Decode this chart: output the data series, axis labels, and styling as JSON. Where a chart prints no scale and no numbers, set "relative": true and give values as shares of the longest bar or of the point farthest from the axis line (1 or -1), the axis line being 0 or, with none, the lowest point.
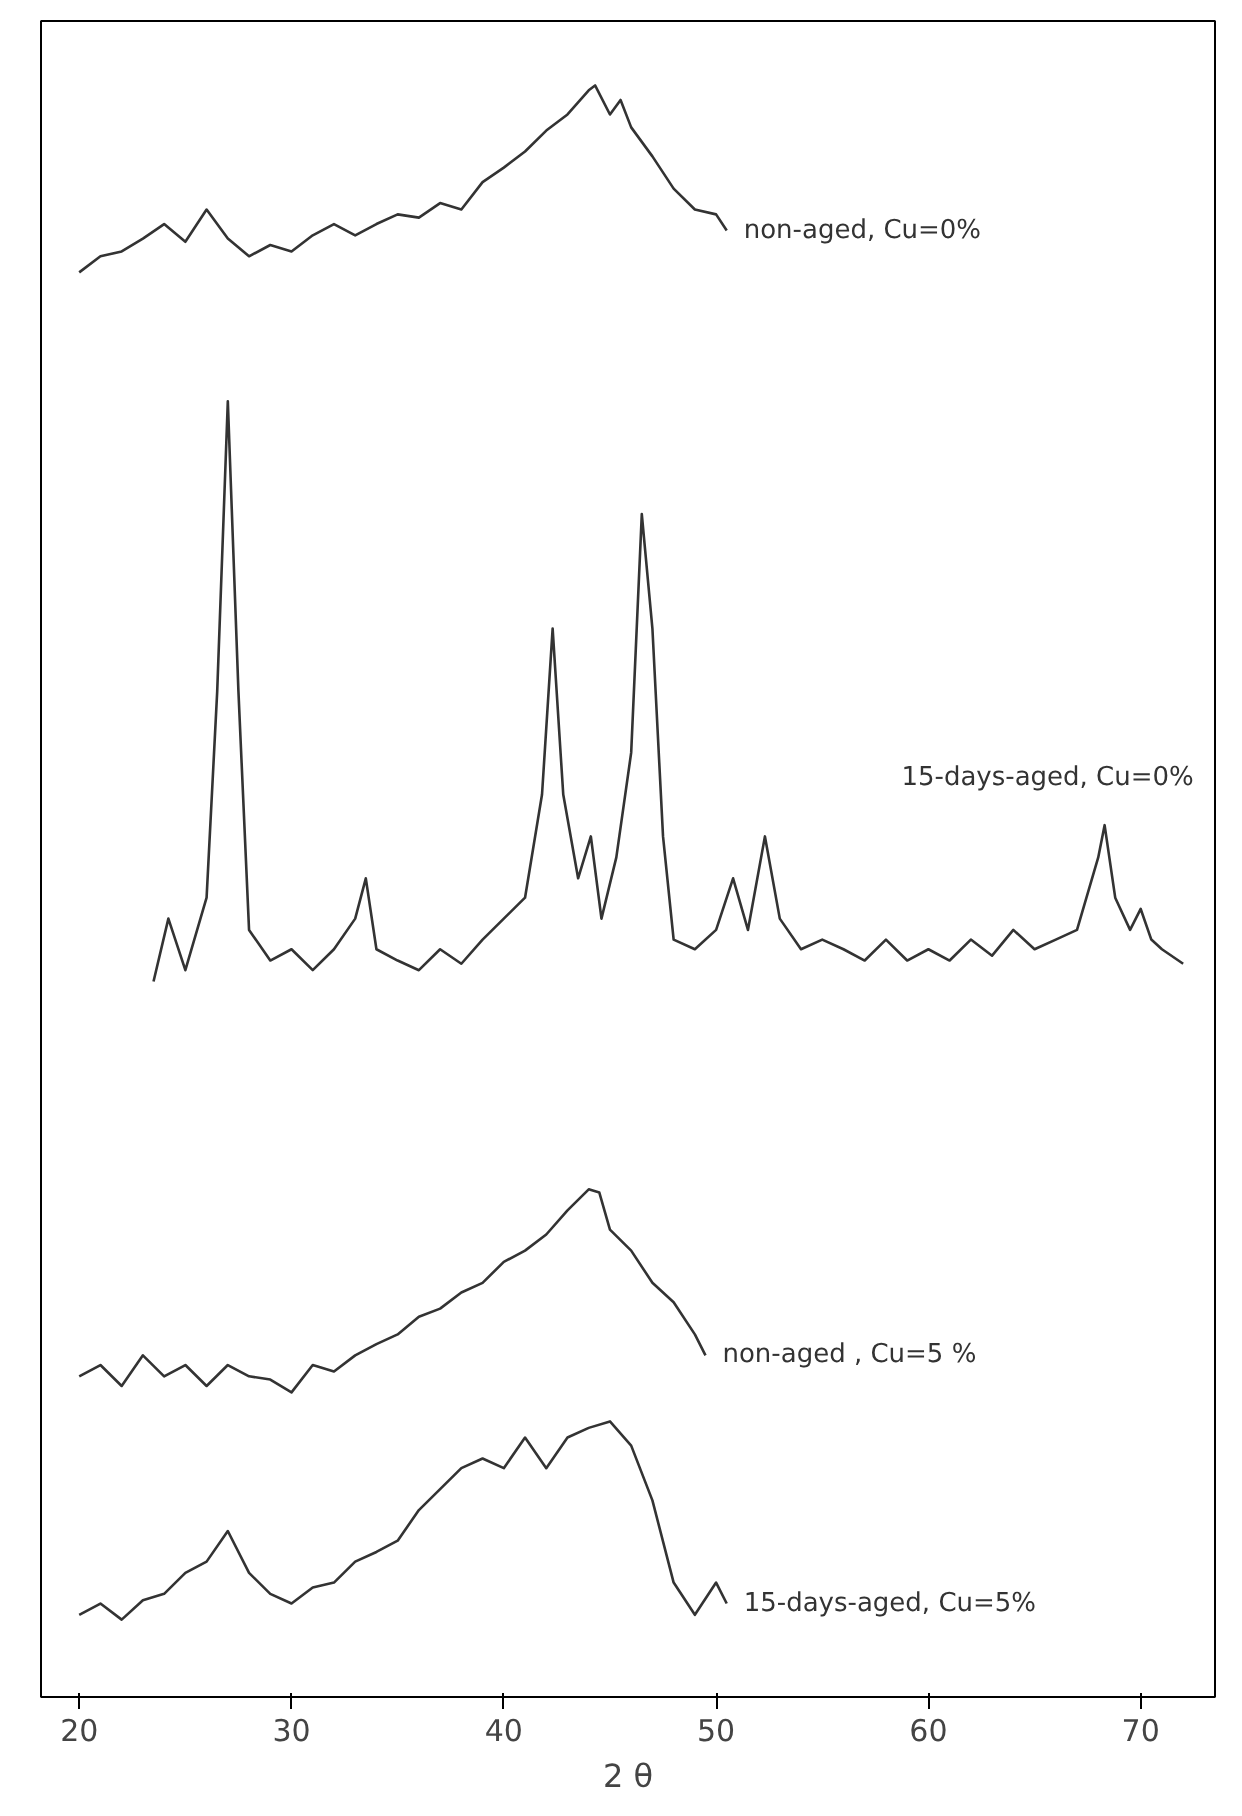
{
  "chart_data": {
    "type": "line",
    "relative": true,
    "xlabel": "2 θ",
    "xlim": [
      18.2,
      73.5
    ],
    "xticks": [
      20,
      30,
      40,
      50,
      60,
      70
    ],
    "series": [
      {
        "name": "non-aged, Cu=0%",
        "color": "#333333",
        "x": [
          20,
          21,
          22,
          23,
          24,
          25,
          26,
          27,
          28,
          29,
          30,
          31,
          32,
          33,
          34,
          35,
          36,
          37,
          38,
          39,
          40,
          41,
          42,
          43,
          44,
          44.3,
          45,
          45.5,
          46,
          47,
          48,
          49,
          50,
          50.5
        ],
        "values": [
          0.884,
          0.894,
          0.897,
          0.905,
          0.914,
          0.903,
          0.923,
          0.905,
          0.894,
          0.901,
          0.897,
          0.907,
          0.914,
          0.907,
          0.914,
          0.92,
          0.918,
          0.927,
          0.923,
          0.94,
          0.949,
          0.959,
          0.972,
          0.982,
          0.997,
          1.0,
          0.982,
          0.991,
          0.974,
          0.956,
          0.936,
          0.923,
          0.92,
          0.91
        ]
      },
      {
        "name": "15-days-aged, Cu=0%",
        "color": "#333333",
        "x": [
          23.5,
          24.2,
          25,
          26,
          26.5,
          27,
          27.5,
          28,
          29,
          30,
          31,
          32,
          33,
          33.5,
          34,
          35,
          36,
          37,
          38,
          39,
          40,
          41,
          41.8,
          42.3,
          42.8,
          43.5,
          44.1,
          44.6,
          45.3,
          46,
          46.5,
          47,
          47.5,
          48,
          49,
          50,
          50.8,
          51.5,
          52.3,
          53,
          54,
          55,
          56,
          57,
          58,
          59,
          60,
          61,
          62,
          63,
          64,
          65,
          66,
          67,
          68,
          68.3,
          68.8,
          69.5,
          70,
          70.5,
          71,
          72
        ],
        "values": [
          0.444,
          0.483,
          0.451,
          0.496,
          0.624,
          0.804,
          0.624,
          0.476,
          0.457,
          0.464,
          0.451,
          0.464,
          0.483,
          0.508,
          0.464,
          0.457,
          0.451,
          0.464,
          0.455,
          0.47,
          0.483,
          0.496,
          0.56,
          0.663,
          0.56,
          0.508,
          0.534,
          0.483,
          0.521,
          0.586,
          0.734,
          0.663,
          0.534,
          0.47,
          0.464,
          0.476,
          0.508,
          0.476,
          0.534,
          0.483,
          0.464,
          0.47,
          0.464,
          0.457,
          0.47,
          0.457,
          0.464,
          0.457,
          0.47,
          0.46,
          0.476,
          0.464,
          0.47,
          0.476,
          0.521,
          0.541,
          0.496,
          0.476,
          0.489,
          0.47,
          0.464,
          0.455
        ]
      },
      {
        "name": "non-aged , Cu=5 %",
        "color": "#333333",
        "x": [
          20,
          21,
          22,
          23,
          24,
          25,
          26,
          27,
          28,
          29,
          30,
          31,
          32,
          33,
          34,
          35,
          36,
          37,
          38,
          39,
          40,
          41,
          42,
          43,
          44,
          44.5,
          45,
          46,
          47,
          48,
          49,
          49.5
        ],
        "values": [
          0.199,
          0.206,
          0.193,
          0.212,
          0.199,
          0.206,
          0.193,
          0.206,
          0.199,
          0.197,
          0.189,
          0.206,
          0.202,
          0.212,
          0.219,
          0.225,
          0.236,
          0.241,
          0.251,
          0.257,
          0.27,
          0.277,
          0.287,
          0.302,
          0.315,
          0.313,
          0.29,
          0.277,
          0.257,
          0.245,
          0.225,
          0.212
        ]
      },
      {
        "name": "15-days-aged, Cu=5%",
        "color": "#333333",
        "x": [
          20,
          21,
          22,
          23,
          24,
          25,
          26,
          27,
          28,
          29,
          30,
          31,
          32,
          33,
          34,
          35,
          36,
          37,
          38,
          39,
          40,
          41,
          42,
          43,
          44,
          45,
          46,
          47,
          48,
          49,
          50,
          50.5
        ],
        "values": [
          0.051,
          0.058,
          0.048,
          0.06,
          0.064,
          0.077,
          0.084,
          0.103,
          0.077,
          0.064,
          0.058,
          0.068,
          0.071,
          0.084,
          0.09,
          0.097,
          0.116,
          0.129,
          0.142,
          0.148,
          0.142,
          0.161,
          0.142,
          0.161,
          0.167,
          0.171,
          0.156,
          0.122,
          0.071,
          0.051,
          0.071,
          0.058
        ]
      }
    ]
  }
}
